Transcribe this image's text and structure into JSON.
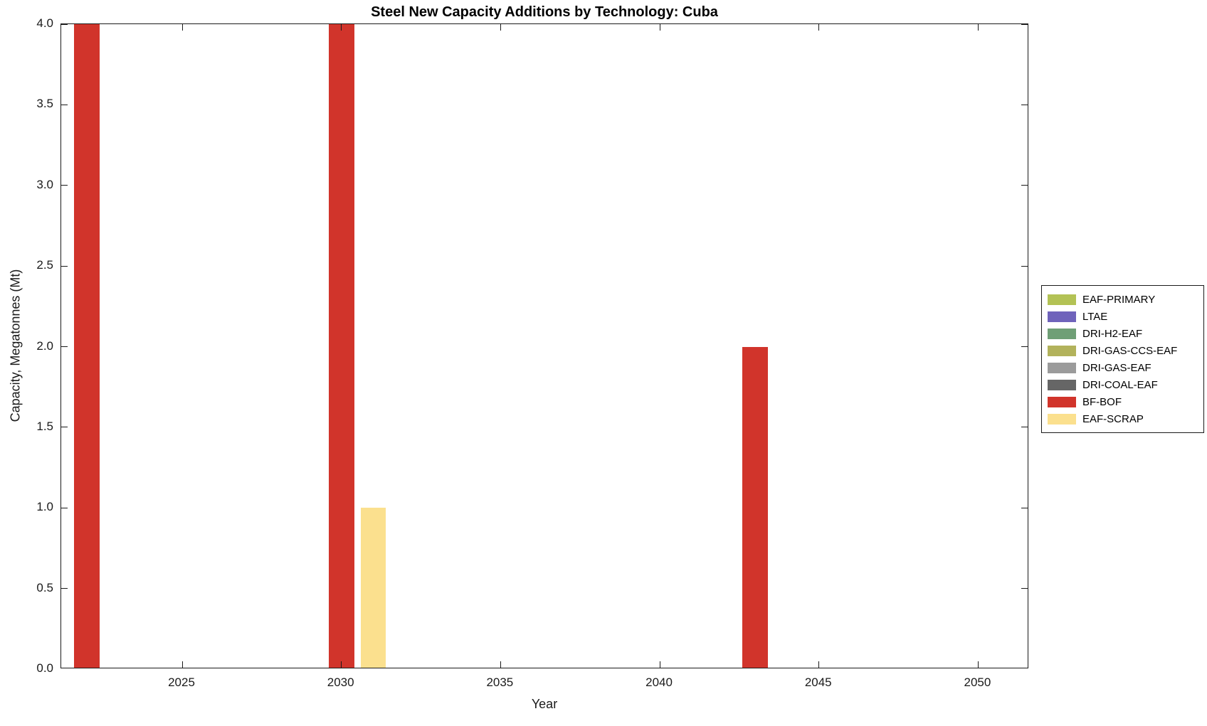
{
  "title": "Steel New Capacity Additions by Technology: Cuba",
  "xlabel": "Year",
  "ylabel": "Capacity, Megatonnes (Mt)",
  "chart_data": {
    "type": "bar",
    "title": "Steel New Capacity Additions by Technology: Cuba",
    "xlabel": "Year",
    "ylabel": "Capacity, Megatonnes (Mt)",
    "xlim": [
      2021.2,
      2051.6
    ],
    "ylim": [
      0,
      4
    ],
    "xticks": [
      2025,
      2030,
      2035,
      2040,
      2045,
      2050
    ],
    "yticks": [
      0,
      0.5,
      1.0,
      1.5,
      2.0,
      2.5,
      3.0,
      3.5,
      4.0
    ],
    "bar_width_years": 0.8,
    "grid": false,
    "legend_position": "right-outside",
    "series": [
      {
        "name": "EAF-PRIMARY",
        "color": "#b3c255",
        "points": []
      },
      {
        "name": "LTAE",
        "color": "#6f63bb",
        "points": []
      },
      {
        "name": "DRI-H2-EAF",
        "color": "#6f9f76",
        "points": []
      },
      {
        "name": "DRI-GAS-CCS-EAF",
        "color": "#b2b25b",
        "points": []
      },
      {
        "name": "DRI-GAS-EAF",
        "color": "#9b9b9b",
        "points": []
      },
      {
        "name": "DRI-COAL-EAF",
        "color": "#666666",
        "points": []
      },
      {
        "name": "BF-BOF",
        "color": "#d1342b",
        "points": [
          {
            "year": 2022,
            "value": 4.0
          },
          {
            "year": 2030,
            "value": 4.0
          },
          {
            "year": 2043,
            "value": 2.0
          }
        ]
      },
      {
        "name": "EAF-SCRAP",
        "color": "#fbe08e",
        "points": [
          {
            "year": 2031,
            "value": 1.0
          }
        ]
      }
    ]
  }
}
